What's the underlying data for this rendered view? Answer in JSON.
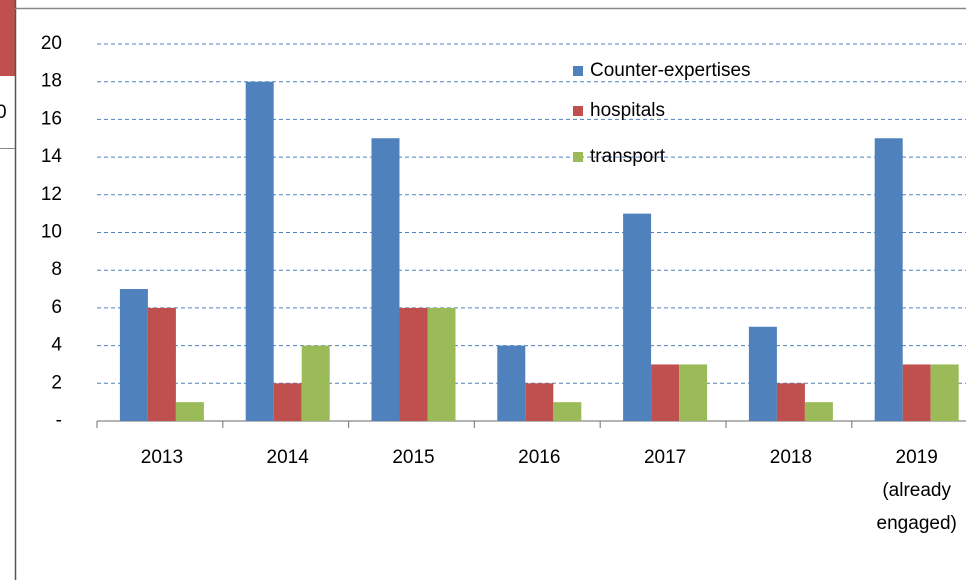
{
  "cropped_text": "0",
  "chart_data": {
    "type": "bar",
    "categories": [
      "2013",
      "2014",
      "2015",
      "2016",
      "2017",
      "2018",
      "2019 (already engaged)"
    ],
    "series": [
      {
        "name": "Counter-expertises",
        "color": "#4f81bd",
        "values": [
          7,
          18,
          15,
          4,
          11,
          5,
          15
        ]
      },
      {
        "name": "hospitals",
        "color": "#c0504d",
        "values": [
          6,
          2,
          6,
          2,
          3,
          2,
          3
        ]
      },
      {
        "name": "transport",
        "color": "#9bbb59",
        "values": [
          1,
          4,
          6,
          1,
          3,
          1,
          3
        ]
      }
    ],
    "ylim": [
      0,
      20
    ],
    "yticks": [
      {
        "value": 0,
        "label": "-"
      },
      2,
      4,
      6,
      8,
      10,
      12,
      14,
      16,
      18,
      20
    ],
    "grid": true
  }
}
